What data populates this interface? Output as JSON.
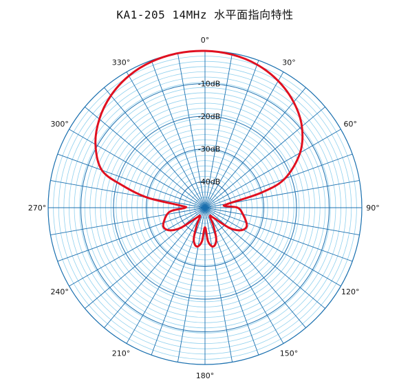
{
  "chart_data": {
    "type": "polar",
    "title": "KA1-205 14MHz 水平面指向特性",
    "angle_ticks": [
      0,
      30,
      60,
      90,
      120,
      150,
      180,
      210,
      240,
      270,
      300,
      330
    ],
    "angle_labels": [
      "0°",
      "30°",
      "60°",
      "90°",
      "120°",
      "150°",
      "180°",
      "210°",
      "240°",
      "270°",
      "300°",
      "330°"
    ],
    "radial_db_labels": [
      {
        "db": -10,
        "text": "-10dB"
      },
      {
        "db": -20,
        "text": "-20dB"
      },
      {
        "db": -30,
        "text": "-30dB"
      },
      {
        "db": -40,
        "text": "-40dB"
      }
    ],
    "radial_range_db": [
      -48,
      0
    ],
    "grid": true,
    "colors": {
      "pattern": "#e01020",
      "grid_major": "#1a6fae",
      "grid_minor": "#8fd0ee"
    },
    "series": [
      {
        "angles": [
          0,
          10,
          20,
          30,
          40,
          50,
          60,
          70,
          75,
          80,
          85,
          90,
          100,
          110,
          115,
          120,
          125,
          130,
          140,
          150,
          155,
          160,
          165,
          170,
          175,
          180,
          185,
          190,
          195,
          200,
          205,
          210,
          220,
          230,
          235,
          240,
          245,
          250,
          260,
          265,
          270,
          275,
          280,
          285,
          290,
          300,
          310,
          320,
          330,
          340,
          350,
          360
        ],
        "db": [
          0,
          -0.4,
          -1.4,
          -3.2,
          -5.8,
          -9.3,
          -14.4,
          -22,
          -30,
          -40.5,
          -42,
          -38,
          -36.2,
          -34.5,
          -34,
          -34.5,
          -36,
          -38.5,
          -44,
          -45,
          -42,
          -38,
          -36.2,
          -36,
          -37.8,
          -42,
          -37.8,
          -36,
          -36.2,
          -38,
          -42,
          -45,
          -44,
          -38.5,
          -36,
          -34.5,
          -34,
          -34.5,
          -36.2,
          -38,
          -42,
          -40.5,
          -30,
          -22,
          -14.4,
          -9.3,
          -5.8,
          -3.2,
          -1.4,
          -0.4,
          0,
          0
        ]
      }
    ]
  }
}
